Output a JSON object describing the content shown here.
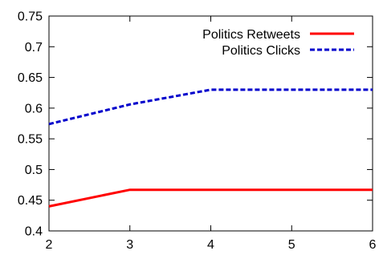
{
  "chart_data": {
    "type": "line",
    "x": [
      2,
      3,
      4,
      5,
      6
    ],
    "series": [
      {
        "name": "Politics Retweets",
        "values": [
          0.44,
          0.467,
          0.467,
          0.467,
          0.467
        ],
        "color": "#ff0000",
        "style": "solid"
      },
      {
        "name": "Politics Clicks",
        "values": [
          0.574,
          0.606,
          0.63,
          0.63,
          0.63
        ],
        "color": "#0000cc",
        "style": "dashed"
      }
    ],
    "xlim": [
      2,
      6
    ],
    "ylim": [
      0.4,
      0.75
    ],
    "xticks": [
      2,
      3,
      4,
      5,
      6
    ],
    "yticks": [
      0.4,
      0.45,
      0.5,
      0.55,
      0.6,
      0.65,
      0.7,
      0.75
    ],
    "xtick_labels": [
      "2",
      "3",
      "4",
      "5",
      "6"
    ],
    "ytick_labels": [
      "0.4",
      "0.45",
      "0.5",
      "0.55",
      "0.6",
      "0.65",
      "0.7",
      "0.75"
    ],
    "legend_position": "top-right",
    "grid": false,
    "title": "",
    "xlabel": "",
    "ylabel": ""
  }
}
